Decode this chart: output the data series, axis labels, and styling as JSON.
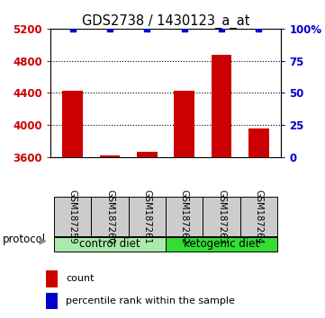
{
  "title": "GDS2738 / 1430123_a_at",
  "samples": [
    "GSM187259",
    "GSM187260",
    "GSM187261",
    "GSM187262",
    "GSM187263",
    "GSM187264"
  ],
  "counts": [
    4430,
    3620,
    3660,
    4430,
    4870,
    3960
  ],
  "percentile_ranks": [
    100,
    100,
    100,
    100,
    100,
    100
  ],
  "ylim_left": [
    3600,
    5200
  ],
  "ylim_right": [
    0,
    100
  ],
  "yticks_left": [
    3600,
    4000,
    4400,
    4800,
    5200
  ],
  "yticks_right": [
    0,
    25,
    50,
    75,
    100
  ],
  "ytick_labels_right": [
    "0",
    "25",
    "50",
    "75",
    "100%"
  ],
  "bar_color": "#cc0000",
  "dot_color": "#0000cc",
  "bar_width": 0.55,
  "group_colors": [
    "#aaeaaa",
    "#33dd33"
  ],
  "group_labels": [
    "control diet",
    "ketogenic diet"
  ],
  "protocol_label": "protocol",
  "legend_count_label": "count",
  "legend_pct_label": "percentile rank within the sample",
  "background_color": "#ffffff",
  "left_tick_color": "#cc0000",
  "right_tick_color": "#0000cc",
  "sample_box_color": "#cccccc"
}
